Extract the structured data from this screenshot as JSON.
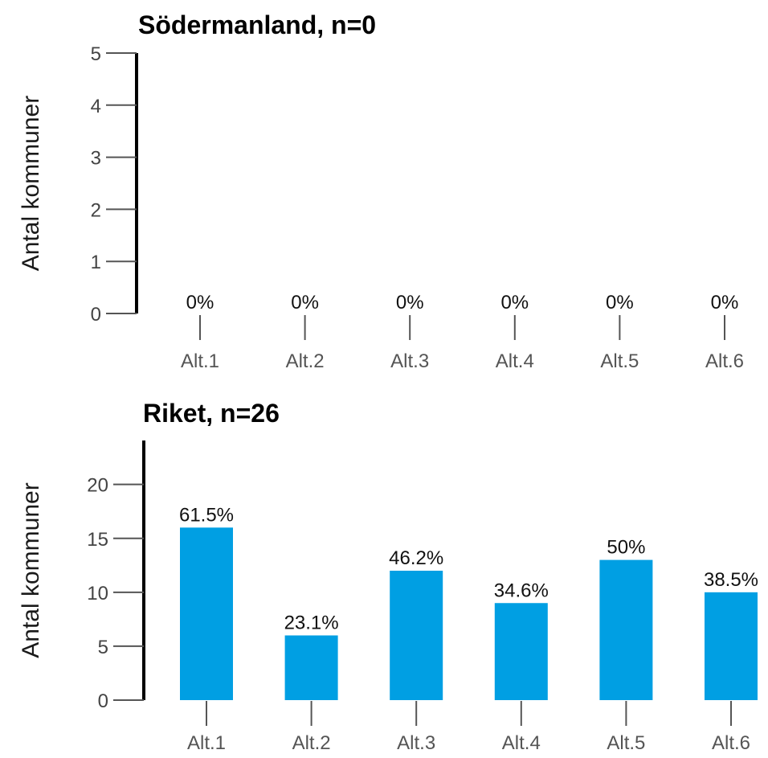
{
  "chart_data": [
    {
      "type": "bar",
      "title": "Södermanland, n=0",
      "ylabel": "Antal kommuner",
      "categories": [
        "Alt.1",
        "Alt.2",
        "Alt.3",
        "Alt.4",
        "Alt.5",
        "Alt.6"
      ],
      "values": [
        0,
        0,
        0,
        0,
        0,
        0
      ],
      "data_labels": [
        "0%",
        "0%",
        "0%",
        "0%",
        "0%",
        "0%"
      ],
      "ylim": [
        0,
        5
      ],
      "yticks": [
        0,
        1,
        2,
        3,
        4,
        5
      ],
      "color": "#009fe3",
      "grid": false
    },
    {
      "type": "bar",
      "title": "Riket, n=26",
      "ylabel": "Antal kommuner",
      "categories": [
        "Alt.1",
        "Alt.2",
        "Alt.3",
        "Alt.4",
        "Alt.5",
        "Alt.6"
      ],
      "values": [
        16,
        6,
        12,
        9,
        13,
        10
      ],
      "data_labels": [
        "61.5%",
        "23.1%",
        "46.2%",
        "34.6%",
        "50%",
        "38.5%"
      ],
      "ylim": [
        0,
        24
      ],
      "yticks": [
        0,
        5,
        10,
        15,
        20
      ],
      "color": "#009fe3",
      "grid": false
    }
  ]
}
